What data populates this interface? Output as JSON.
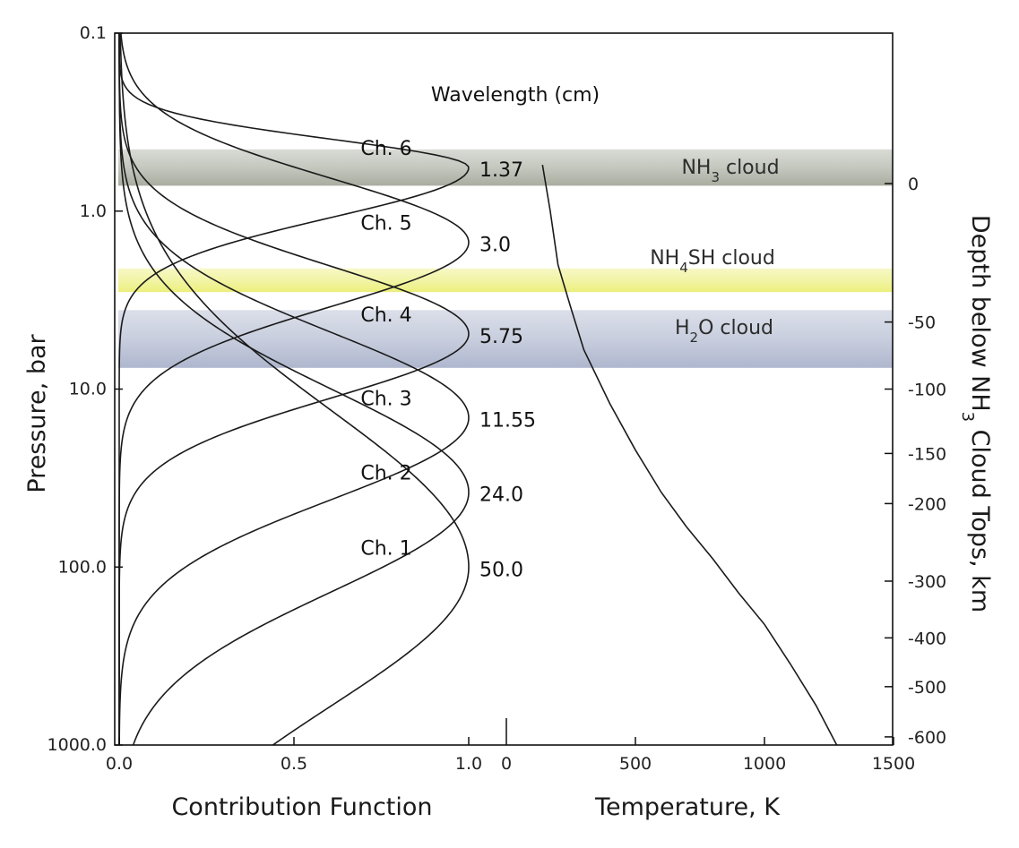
{
  "chart_data": {
    "type": "line",
    "left_axis": {
      "label": "Pressure, bar",
      "scale": "log",
      "range": [
        0.1,
        1000
      ],
      "ticks": [
        {
          "value": 0.1,
          "label": "0.1"
        },
        {
          "value": 1,
          "label": "1.0"
        },
        {
          "value": 10,
          "label": "10.0"
        },
        {
          "value": 100,
          "label": "100.0"
        },
        {
          "value": 1000,
          "label": "1000.0"
        }
      ]
    },
    "right_axis": {
      "label_parts": [
        "Depth below NH",
        "3",
        " Cloud Tops, km"
      ],
      "ticks": [
        {
          "depth": 0,
          "pressure": 0.7,
          "label": "0"
        },
        {
          "depth": -50,
          "pressure": 4.2,
          "label": "-50"
        },
        {
          "depth": -100,
          "pressure": 10,
          "label": "-100"
        },
        {
          "depth": -150,
          "pressure": 23,
          "label": "-150"
        },
        {
          "depth": -200,
          "pressure": 44,
          "label": "-200"
        },
        {
          "depth": -300,
          "pressure": 120,
          "label": "-300"
        },
        {
          "depth": -400,
          "pressure": 250,
          "label": "-400"
        },
        {
          "depth": -500,
          "pressure": 470,
          "label": "-500"
        },
        {
          "depth": -600,
          "pressure": 900,
          "label": "-600"
        }
      ]
    },
    "bottom_left_axis": {
      "label": "Contribution Function",
      "range": [
        0,
        1
      ],
      "ticks": [
        {
          "value": 0,
          "label": "0.0"
        },
        {
          "value": 0.5,
          "label": "0.5"
        },
        {
          "value": 1,
          "label": "1.0"
        }
      ]
    },
    "bottom_right_axis": {
      "label": "Temperature, K",
      "range": [
        0,
        1500
      ],
      "ticks": [
        {
          "value": 0,
          "label": "0"
        },
        {
          "value": 500,
          "label": "500"
        },
        {
          "value": 1000,
          "label": "1000"
        },
        {
          "value": 1500,
          "label": "1500"
        }
      ]
    },
    "wavelength_header": "Wavelength (cm)",
    "channels": [
      {
        "label": "Ch. 6",
        "wavelength": "1.37",
        "peak_pressure": 0.57,
        "sigma_up": 0.16,
        "sigma_down": 0.28
      },
      {
        "label": "Ch. 5",
        "wavelength": "3.0",
        "peak_pressure": 1.5,
        "sigma_up": 0.36,
        "sigma_down": 0.36
      },
      {
        "label": "Ch. 4",
        "wavelength": "5.75",
        "peak_pressure": 4.9,
        "sigma_up": 0.38,
        "sigma_down": 0.36
      },
      {
        "label": "Ch. 3",
        "wavelength": "11.55",
        "peak_pressure": 14.5,
        "sigma_up": 0.48,
        "sigma_down": 0.46
      },
      {
        "label": "Ch. 2",
        "wavelength": "24.0",
        "peak_pressure": 38,
        "sigma_up": 0.58,
        "sigma_down": 0.56
      },
      {
        "label": "Ch. 1",
        "wavelength": "50.0",
        "peak_pressure": 100,
        "sigma_up": 0.88,
        "sigma_down": 0.78
      }
    ],
    "clouds": [
      {
        "name_parts": [
          "NH",
          "3",
          " cloud"
        ],
        "p_top": 0.45,
        "p_bottom": 0.72,
        "color": "#5b634a",
        "opacity": 0.42
      },
      {
        "name_parts": [
          "NH",
          "4",
          "SH cloud"
        ],
        "p_top": 2.1,
        "p_bottom": 2.85,
        "color": "#ecef7c",
        "opacity": 0.8
      },
      {
        "name_parts": [
          "H",
          "2",
          "O cloud"
        ],
        "p_top": 3.6,
        "p_bottom": 7.6,
        "color": "#8a96b8",
        "opacity": 0.55
      }
    ],
    "temperature_profile": [
      {
        "T": 140,
        "p": 0.55
      },
      {
        "T": 170,
        "p": 1.0
      },
      {
        "T": 200,
        "p": 2.0
      },
      {
        "T": 250,
        "p": 3.5
      },
      {
        "T": 300,
        "p": 6.0
      },
      {
        "T": 400,
        "p": 12
      },
      {
        "T": 500,
        "p": 22
      },
      {
        "T": 600,
        "p": 38
      },
      {
        "T": 700,
        "p": 60
      },
      {
        "T": 800,
        "p": 90
      },
      {
        "T": 900,
        "p": 140
      },
      {
        "T": 1000,
        "p": 210
      },
      {
        "T": 1100,
        "p": 350
      },
      {
        "T": 1200,
        "p": 600
      },
      {
        "T": 1280,
        "p": 1000
      }
    ],
    "grid": false,
    "legend": "none",
    "line_color": "#1a1a1a"
  }
}
